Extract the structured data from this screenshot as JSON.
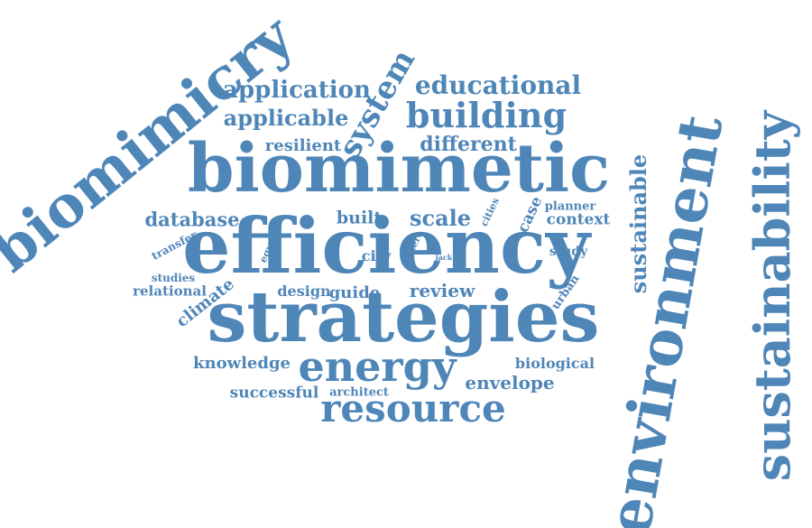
{
  "word_cloud": {
    "color": "#4f86b8",
    "words": [
      "biomimicry",
      "biomimetic",
      "efficiency",
      "strategies",
      "environment",
      "sustainability",
      "energy",
      "resource",
      "building",
      "application",
      "applicable",
      "educational",
      "system",
      "resilient",
      "different",
      "database",
      "built",
      "scale",
      "context",
      "case",
      "cities",
      "zero",
      "planner",
      "sustainable",
      "transfer",
      "egypt",
      "city",
      "lack",
      "study",
      "studies",
      "relational",
      "climate",
      "design",
      "guide",
      "review",
      "urban",
      "knowledge",
      "biological",
      "successful",
      "architect",
      "envelope"
    ]
  }
}
